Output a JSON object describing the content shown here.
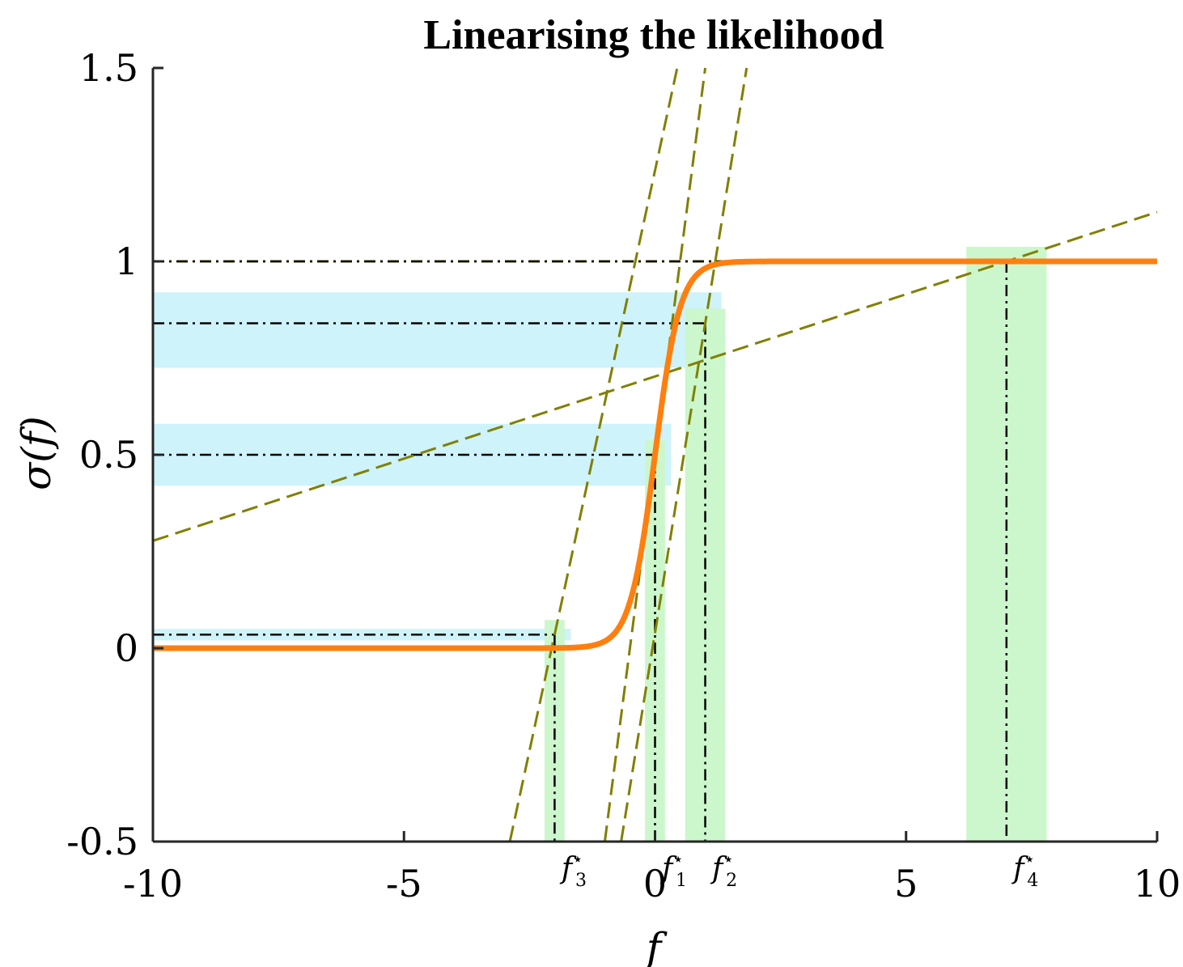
{
  "chart_data": {
    "type": "line",
    "title": "Linearising the likelihood",
    "xlabel": "f",
    "ylabel": "σ(f)",
    "xlim": [
      -10,
      10
    ],
    "ylim": [
      -0.5,
      1.5
    ],
    "xticks": [
      -10,
      -5,
      0,
      5,
      10
    ],
    "xtick_labels": [
      "-10",
      "-5",
      "0",
      "5",
      "10"
    ],
    "yticks": [
      -0.5,
      0,
      0.5,
      1,
      1.5
    ],
    "ytick_labels": [
      "-0.5",
      "0",
      "0.5",
      "1",
      "1.5"
    ],
    "grid": false,
    "colors": {
      "sigmoid": "#ff7f0e",
      "tangent": "#808000",
      "hband": "#cef3fb",
      "vband": "#ccf7cc",
      "guide": "#000000"
    },
    "sigmoid": {
      "name": "σ(f)",
      "x_range": [
        -10,
        10
      ]
    },
    "reference_line": {
      "y": 1
    },
    "points": [
      {
        "label": "f",
        "sub": "1",
        "x": 0.0,
        "y": 0.5,
        "x_band": [
          -0.2,
          0.2
        ],
        "y_band": [
          0.42,
          0.58
        ],
        "slope": 1.0
      },
      {
        "label": "f",
        "sub": "2",
        "x": 1.0,
        "y": 0.84,
        "x_band": [
          0.6,
          1.4
        ],
        "y_band": [
          0.725,
          0.92
        ],
        "slope": 0.8
      },
      {
        "label": "f",
        "sub": "3",
        "x": -2.0,
        "y": 0.035,
        "x_band": [
          -2.2,
          -1.8
        ],
        "y_band": [
          0.02,
          0.05
        ],
        "slope": 0.6
      },
      {
        "label": "f",
        "sub": "4",
        "x": 7.0,
        "y": 1.0,
        "x_band": [
          6.2,
          7.8
        ],
        "y_band": [
          1.0,
          1.0
        ],
        "slope": 0.0425
      }
    ]
  }
}
